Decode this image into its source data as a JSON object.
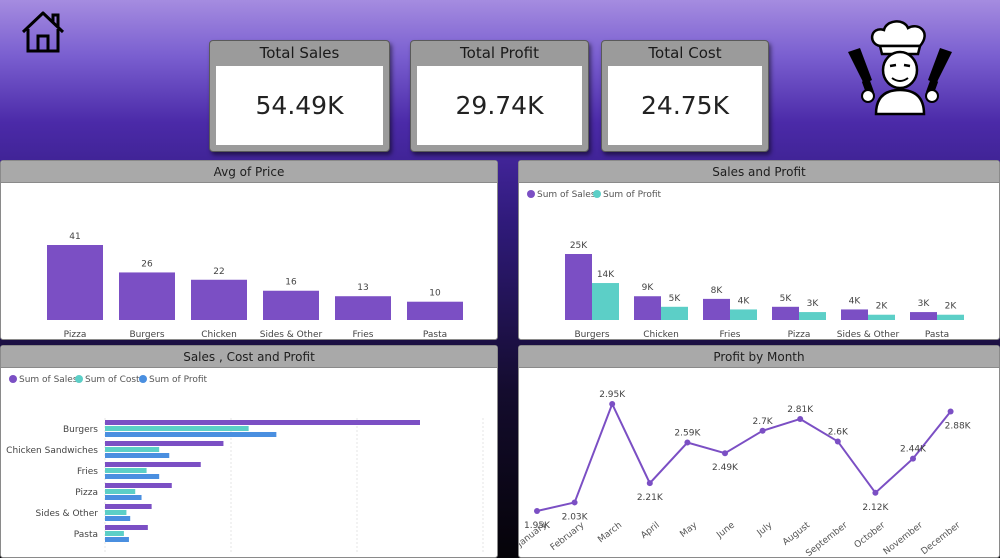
{
  "icons": {
    "home": "home-icon",
    "logo": "chef-logo-icon"
  },
  "colors": {
    "purple": "#7b4fc4",
    "teal": "#5ccfc7",
    "blue": "#4a8fe0"
  },
  "kpis": [
    {
      "label": "Total Sales",
      "value": "54.49K"
    },
    {
      "label": "Total Profit",
      "value": "29.74K"
    },
    {
      "label": "Total Cost",
      "value": "24.75K"
    }
  ],
  "panels": {
    "avg_price": {
      "title": "Avg of Price"
    },
    "sales_profit": {
      "title": "Sales and Profit"
    },
    "sales_cost_profit": {
      "title": "Sales , Cost and Profit"
    },
    "profit_month": {
      "title": "Profit by Month"
    }
  },
  "chart_data": [
    {
      "type": "bar",
      "title": "Avg of Price",
      "categories": [
        "Pizza",
        "Burgers",
        "Chicken Sandwiches",
        "Sides & Other",
        "Fries",
        "Pasta"
      ],
      "values": [
        41,
        26,
        22,
        16,
        13,
        10
      ],
      "data_labels": [
        "41",
        "26",
        "22",
        "16",
        "13",
        "10"
      ]
    },
    {
      "type": "bar",
      "title": "Sales and Profit",
      "categories": [
        "Burgers",
        "Chicken Sandwiches",
        "Fries",
        "Pizza",
        "Sides & Other",
        "Pasta"
      ],
      "series": [
        {
          "name": "Sum of Sales",
          "values": [
            25,
            9,
            8,
            5,
            4,
            3
          ],
          "labels": [
            "25K",
            "9K",
            "8K",
            "5K",
            "4K",
            "3K"
          ]
        },
        {
          "name": "Sum of Profit",
          "values": [
            14,
            5,
            4,
            3,
            2,
            2
          ],
          "labels": [
            "14K",
            "5K",
            "4K",
            "3K",
            "2K",
            "2K"
          ]
        }
      ],
      "legend": "top-left"
    },
    {
      "type": "bar",
      "orientation": "horizontal",
      "title": "Sales , Cost and Profit",
      "categories": [
        "Burgers",
        "Chicken Sandwiches",
        "Fries",
        "Pizza",
        "Sides & Other",
        "Pasta"
      ],
      "series": [
        {
          "name": "Sum of Sales",
          "values": [
            25000,
            9400,
            7600,
            5300,
            3700,
            3400
          ]
        },
        {
          "name": "Sum of Cost",
          "values": [
            11400,
            4300,
            3300,
            2400,
            1700,
            1500
          ]
        },
        {
          "name": "Sum of Profit",
          "values": [
            13600,
            5100,
            4300,
            2900,
            2000,
            1900
          ]
        }
      ],
      "xticks": [
        "0K",
        "10K",
        "20K",
        "30K"
      ],
      "xlim": [
        0,
        30000
      ],
      "legend": "top-left"
    },
    {
      "type": "line",
      "title": "Profit by Month",
      "x": [
        "January",
        "February",
        "March",
        "April",
        "May",
        "June",
        "July",
        "August",
        "September",
        "October",
        "November",
        "December"
      ],
      "values": [
        1.95,
        2.03,
        2.95,
        2.21,
        2.59,
        2.49,
        2.7,
        2.81,
        2.6,
        2.12,
        2.44,
        2.88
      ],
      "labels": [
        "1.95K",
        "2.03K",
        "2.95K",
        "2.21K",
        "2.59K",
        "2.49K",
        "2.7K",
        "2.81K",
        "2.6K",
        "2.12K",
        "2.44K",
        "2.88K"
      ]
    }
  ]
}
